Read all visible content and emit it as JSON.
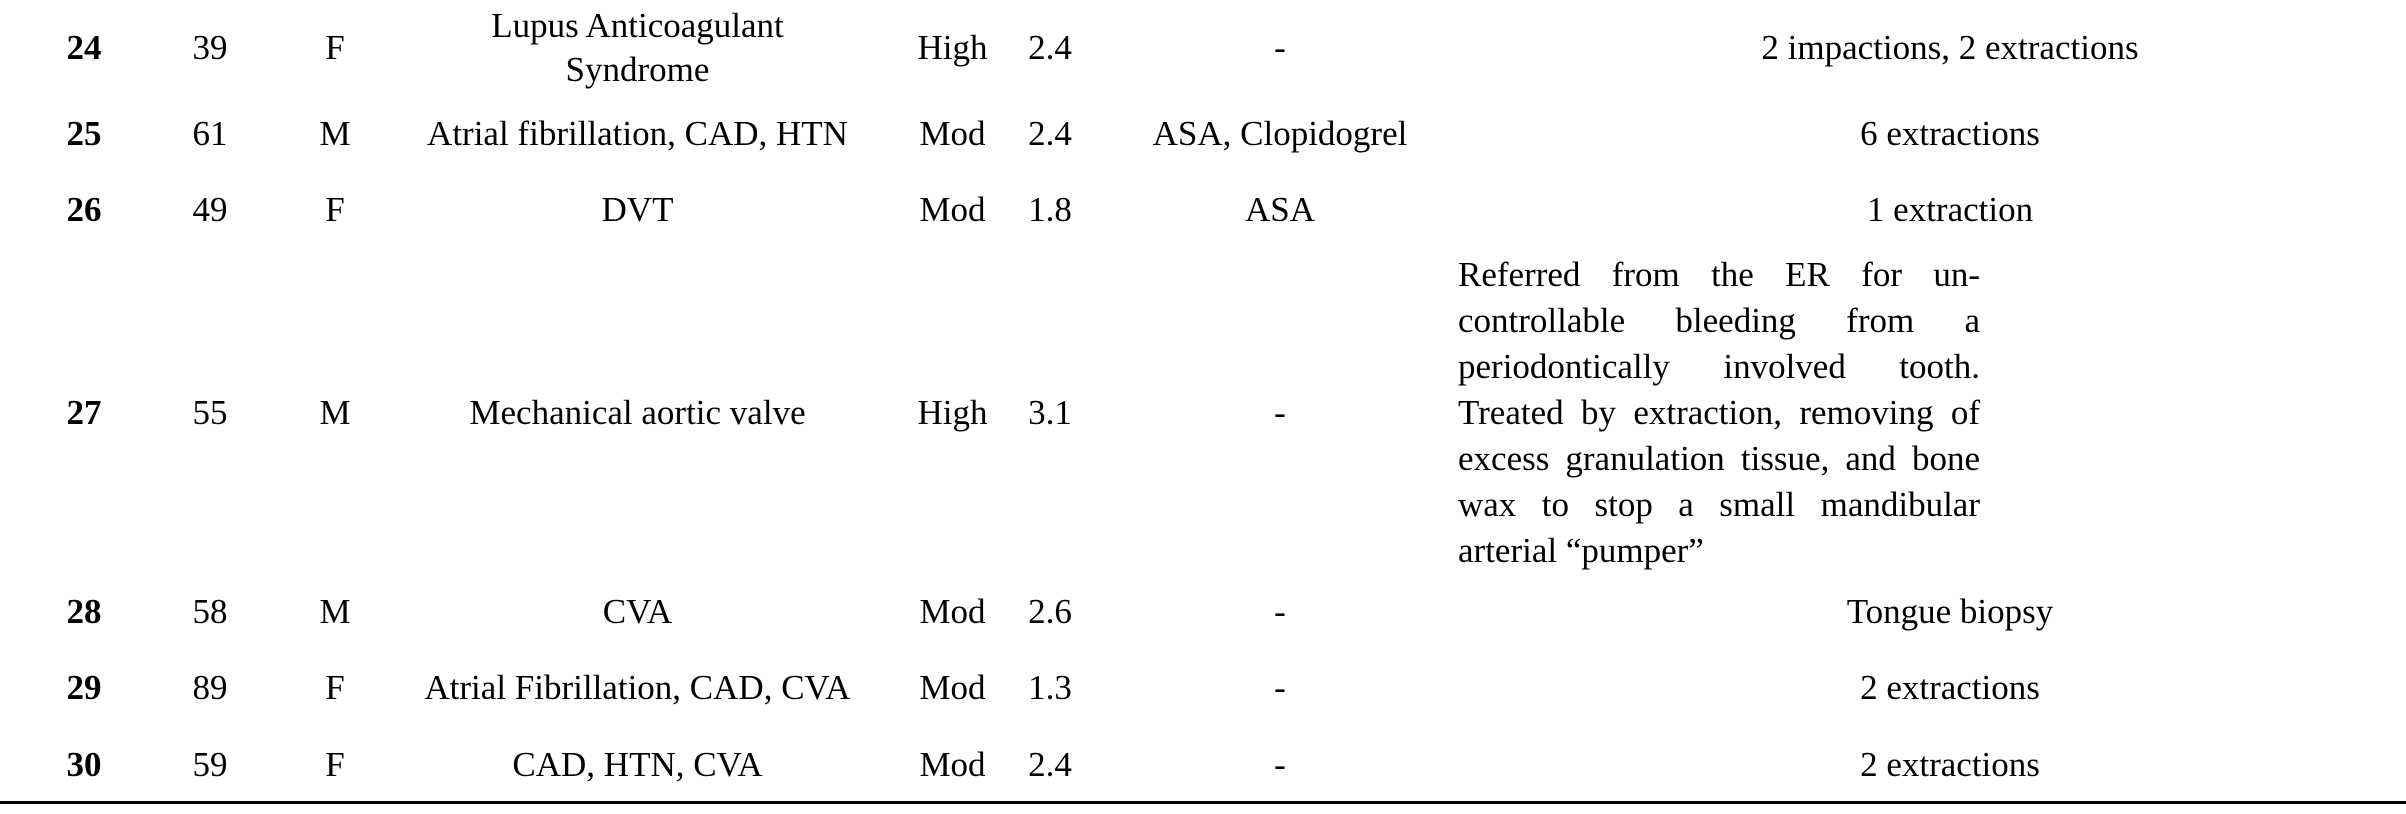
{
  "rows": [
    {
      "id": "24",
      "age": "39",
      "sex": "F",
      "condition": "Lupus Anticoagulant Syndrome",
      "risk": "High",
      "inr": "2.4",
      "medication": "-",
      "procedure": "2 impactions, 2 extractions"
    },
    {
      "id": "25",
      "age": "61",
      "sex": "M",
      "condition": "Atrial fibrillation, CAD, HTN",
      "risk": "Mod",
      "inr": "2.4",
      "medication": "ASA, Clopidogrel",
      "procedure": "6 extractions"
    },
    {
      "id": "26",
      "age": "49",
      "sex": "F",
      "condition": "DVT",
      "risk": "Mod",
      "inr": "1.8",
      "medication": "ASA",
      "procedure": "1 extraction"
    },
    {
      "id": "27",
      "age": "55",
      "sex": "M",
      "condition": "Mechanical aortic valve",
      "risk": "High",
      "inr": "3.1",
      "medication": "-",
      "procedure": "Referred from the ER for un-controllable bleeding from a periodontically involved tooth. Treated by extraction, removing of excess granulation tissue, and bone wax to stop a small mandibular arterial “pumper”"
    },
    {
      "id": "28",
      "age": "58",
      "sex": "M",
      "condition": "CVA",
      "risk": "Mod",
      "inr": "2.6",
      "medication": "-",
      "procedure": "Tongue biopsy"
    },
    {
      "id": "29",
      "age": "89",
      "sex": "F",
      "condition": "Atrial Fibrillation, CAD, CVA",
      "risk": "Mod",
      "inr": "1.3",
      "medication": "-",
      "procedure": "2 extractions"
    },
    {
      "id": "30",
      "age": "59",
      "sex": "F",
      "condition": "CAD, HTN, CVA",
      "risk": "Mod",
      "inr": "2.4",
      "medication": "-",
      "procedure": "2 extractions"
    }
  ]
}
